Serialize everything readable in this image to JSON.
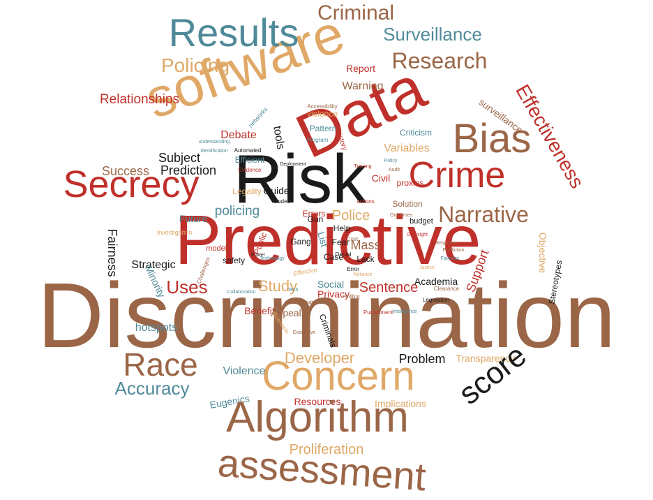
{
  "palette": {
    "brown": "#9b6647",
    "red": "#c0302a",
    "tan": "#e0a867",
    "teal": "#4f8a99",
    "black": "#1a1a1a"
  },
  "words": [
    {
      "text": "Discrimination",
      "color": "brown"
    },
    {
      "text": "Predictive",
      "color": "red"
    },
    {
      "text": "Risk",
      "color": "black"
    },
    {
      "text": "Data",
      "color": "red"
    },
    {
      "text": "software",
      "color": "tan"
    },
    {
      "text": "Results",
      "color": "teal"
    },
    {
      "text": "Criminal",
      "color": "brown"
    },
    {
      "text": "Surveillance",
      "color": "teal"
    },
    {
      "text": "Research",
      "color": "brown"
    },
    {
      "text": "Policing",
      "color": "tan"
    },
    {
      "text": "Report",
      "color": "red"
    },
    {
      "text": "Warning",
      "color": "brown"
    },
    {
      "text": "Relationships",
      "color": "red"
    },
    {
      "text": "Effectiveness",
      "color": "red"
    },
    {
      "text": "surveillance",
      "color": "brown"
    },
    {
      "text": "Bias",
      "color": "brown"
    },
    {
      "text": "Crime",
      "color": "red"
    },
    {
      "text": "Secrecy",
      "color": "red"
    },
    {
      "text": "Narrative",
      "color": "brown"
    },
    {
      "text": "Subject",
      "color": "black"
    },
    {
      "text": "Prediction",
      "color": "black"
    },
    {
      "text": "Success",
      "color": "brown"
    },
    {
      "text": "Debate",
      "color": "red"
    },
    {
      "text": "tools",
      "color": "black"
    },
    {
      "text": "Variables",
      "color": "tan"
    },
    {
      "text": "Pattern",
      "color": "teal"
    },
    {
      "text": "Criticism",
      "color": "teal"
    },
    {
      "text": "Efficient",
      "color": "teal"
    },
    {
      "text": "Civil",
      "color": "red"
    },
    {
      "text": "proxies",
      "color": "red"
    },
    {
      "text": "policing",
      "color": "teal"
    },
    {
      "text": "Police",
      "color": "tan"
    },
    {
      "text": "Fairness",
      "color": "black"
    },
    {
      "text": "Future",
      "color": "teal"
    },
    {
      "text": "Legality",
      "color": "tan"
    },
    {
      "text": "Guide",
      "color": "black"
    },
    {
      "text": "Errors",
      "color": "red"
    },
    {
      "text": "Solution",
      "color": "brown"
    },
    {
      "text": "budget",
      "color": "black"
    },
    {
      "text": "Gun",
      "color": "black"
    },
    {
      "text": "Help",
      "color": "black"
    },
    {
      "text": "Fear",
      "color": "black"
    },
    {
      "text": "Mass",
      "color": "brown"
    },
    {
      "text": "Lack",
      "color": "black"
    },
    {
      "text": "Objective",
      "color": "tan"
    },
    {
      "text": "Strategic",
      "color": "black"
    },
    {
      "text": "safety",
      "color": "black"
    },
    {
      "text": "Minority",
      "color": "teal"
    },
    {
      "text": "Uses",
      "color": "red"
    },
    {
      "text": "Study",
      "color": "tan"
    },
    {
      "text": "Social",
      "color": "teal"
    },
    {
      "text": "Sentence",
      "color": "red"
    },
    {
      "text": "Privacy",
      "color": "red"
    },
    {
      "text": "Academia",
      "color": "black"
    },
    {
      "text": "Support",
      "color": "red"
    },
    {
      "text": "Stereotypes",
      "color": "black"
    },
    {
      "text": "Benefit",
      "color": "red"
    },
    {
      "text": "Appeal",
      "color": "brown"
    },
    {
      "text": "Criminals",
      "color": "black"
    },
    {
      "text": "hotspots",
      "color": "teal"
    },
    {
      "text": "Race",
      "color": "brown"
    },
    {
      "text": "Developer",
      "color": "tan"
    },
    {
      "text": "Problem",
      "color": "black"
    },
    {
      "text": "Transparency",
      "color": "tan"
    },
    {
      "text": "Concern",
      "color": "tan"
    },
    {
      "text": "score",
      "color": "black"
    },
    {
      "text": "Accuracy",
      "color": "teal"
    },
    {
      "text": "Violence",
      "color": "teal"
    },
    {
      "text": "Eugenics",
      "color": "teal"
    },
    {
      "text": "Resources",
      "color": "red"
    },
    {
      "text": "Implications",
      "color": "tan"
    },
    {
      "text": "Algorithm",
      "color": "brown"
    },
    {
      "text": "Proliferation",
      "color": "tan"
    },
    {
      "text": "assessment",
      "color": "brown"
    },
    {
      "text": "networks",
      "color": "teal"
    },
    {
      "text": "understanding",
      "color": "teal"
    },
    {
      "text": "Identification",
      "color": "teal"
    },
    {
      "text": "Automated",
      "color": "black"
    },
    {
      "text": "Evidence",
      "color": "red"
    },
    {
      "text": "violence",
      "color": "tan"
    },
    {
      "text": "Accessibility",
      "color": "brown"
    },
    {
      "text": "Program",
      "color": "teal"
    },
    {
      "text": "history",
      "color": "red"
    },
    {
      "text": "actions",
      "color": "red"
    },
    {
      "text": "Codes",
      "color": "black"
    },
    {
      "text": "List",
      "color": "teal"
    },
    {
      "text": "Gang",
      "color": "black"
    },
    {
      "text": "Effective",
      "color": "tan"
    },
    {
      "text": "models",
      "color": "red"
    },
    {
      "text": "Public",
      "color": "red"
    },
    {
      "text": "Investigation",
      "color": "tan"
    },
    {
      "text": "Challenges",
      "color": "brown"
    },
    {
      "text": "Collaboration",
      "color": "teal"
    },
    {
      "text": "Profiling",
      "color": "brown"
    },
    {
      "text": "Punishment",
      "color": "red"
    },
    {
      "text": "Case",
      "color": "black"
    },
    {
      "text": "Legislation",
      "color": "black"
    },
    {
      "text": "Clearance",
      "color": "brown"
    },
    {
      "text": "Scenario",
      "color": "tan"
    },
    {
      "text": "Expensive",
      "color": "brown"
    },
    {
      "text": "Intelligence",
      "color": "teal"
    },
    {
      "text": "Cost",
      "color": "brown"
    },
    {
      "text": "Denial",
      "color": "black"
    },
    {
      "text": "Error",
      "color": "black"
    },
    {
      "text": "Power",
      "color": "black"
    },
    {
      "text": "Tech",
      "color": "teal"
    },
    {
      "text": "Information",
      "color": "brown"
    },
    {
      "text": "Response",
      "color": "brown"
    },
    {
      "text": "Prediction",
      "color": "brown"
    },
    {
      "text": "Fairness",
      "color": "teal"
    },
    {
      "text": "Oversight",
      "color": "red"
    },
    {
      "text": "Justice",
      "color": "tan"
    },
    {
      "text": "Audit",
      "color": "brown"
    },
    {
      "text": "Policy",
      "color": "teal"
    },
    {
      "text": "Training",
      "color": "red"
    },
    {
      "text": "Outcomes",
      "color": "brown"
    },
    {
      "text": "Reliance",
      "color": "tan"
    },
    {
      "text": "Technology",
      "color": "teal"
    },
    {
      "text": "Deployment",
      "color": "black"
    }
  ]
}
